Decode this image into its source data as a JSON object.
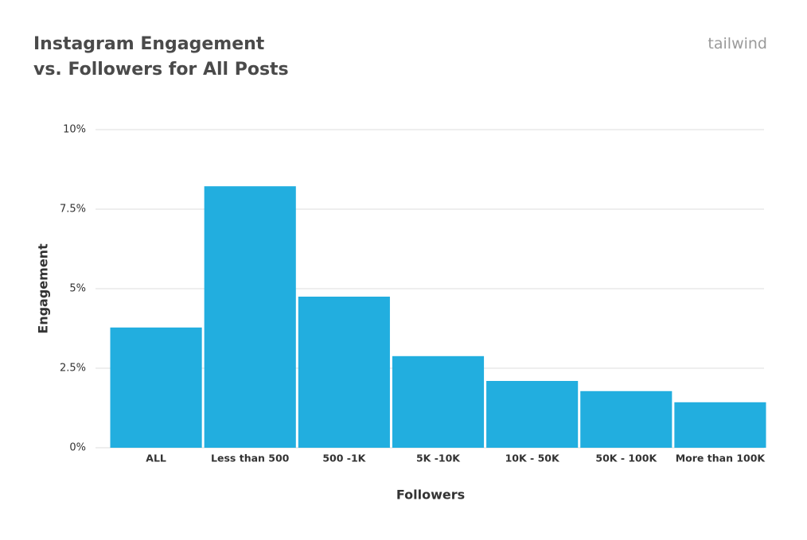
{
  "chart_data": {
    "type": "bar",
    "title": "Instagram Engagement vs. Followers for All Posts",
    "brand": "tailwind",
    "x_label": "Followers",
    "y_label": "Engagement",
    "categories": [
      "ALL",
      "Less than 500",
      "500 -1K",
      "5K -10K",
      "10K - 50K",
      "50K - 100K",
      "More than 100K"
    ],
    "values": [
      3.78,
      8.22,
      4.75,
      2.88,
      2.1,
      1.78,
      1.43
    ],
    "color": "#22aedf",
    "ylim": [
      0,
      10
    ],
    "yticks": [
      {
        "value": 0,
        "label": "0%"
      },
      {
        "value": 2.5,
        "label": "2.5%"
      },
      {
        "value": 5,
        "label": "5%"
      },
      {
        "value": 7.5,
        "label": "7.5%"
      },
      {
        "value": 10,
        "label": "10%"
      }
    ],
    "grid": true
  }
}
